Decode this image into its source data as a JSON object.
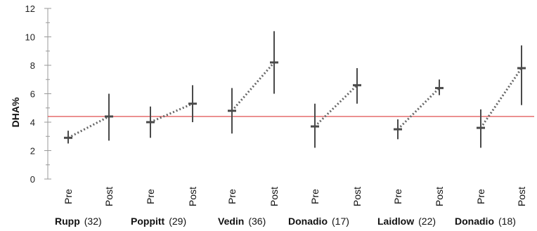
{
  "chart_data": {
    "type": "error-bar",
    "ylabel": "DHA%",
    "ylim": [
      0,
      12
    ],
    "yticks": [
      "0",
      "2",
      "4",
      "6",
      "8",
      "10",
      "12"
    ],
    "reference_line": {
      "value": 4.4,
      "color": "#e05050"
    },
    "connector_style": "dotted",
    "categories": [
      "Pre",
      "Post"
    ],
    "studies": [
      {
        "name": "Rupp",
        "n": "(32)",
        "pre": {
          "mean": 2.9,
          "low": 2.5,
          "high": 3.4
        },
        "post": {
          "mean": 4.4,
          "low": 2.7,
          "high": 6.0
        }
      },
      {
        "name": "Poppitt",
        "n": "(29)",
        "pre": {
          "mean": 4.0,
          "low": 2.9,
          "high": 5.1
        },
        "post": {
          "mean": 5.3,
          "low": 4.0,
          "high": 6.6
        }
      },
      {
        "name": "Vedin",
        "n": "(36)",
        "pre": {
          "mean": 4.8,
          "low": 3.2,
          "high": 6.4
        },
        "post": {
          "mean": 8.2,
          "low": 6.0,
          "high": 10.4
        }
      },
      {
        "name": "Donadio",
        "n": "(17)",
        "pre": {
          "mean": 3.7,
          "low": 2.2,
          "high": 5.3
        },
        "post": {
          "mean": 6.6,
          "low": 5.3,
          "high": 7.8
        }
      },
      {
        "name": "Laidlow",
        "n": "(22)",
        "pre": {
          "mean": 3.5,
          "low": 2.8,
          "high": 4.2
        },
        "post": {
          "mean": 6.4,
          "low": 5.9,
          "high": 7.0
        }
      },
      {
        "name": "Donadio",
        "n": "(18)",
        "pre": {
          "mean": 3.6,
          "low": 2.2,
          "high": 4.9
        },
        "post": {
          "mean": 7.8,
          "low": 5.2,
          "high": 9.4
        }
      }
    ],
    "colors": {
      "bars": "#4a4a4a",
      "connector": "#666666",
      "axis": "#9a9a9a"
    }
  }
}
